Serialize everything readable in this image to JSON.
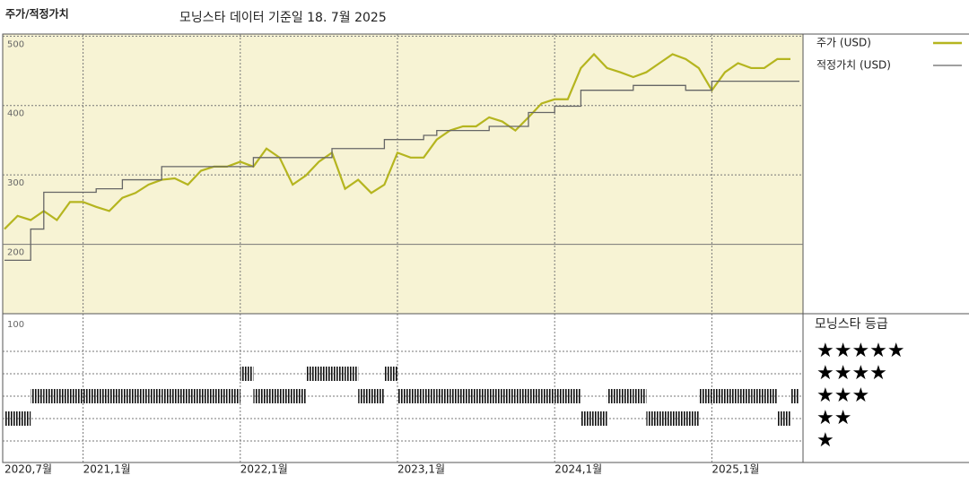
{
  "chart_data": [
    {
      "type": "line",
      "title": "주가/적정가치",
      "subtitle": "모닝스타 데이터 기준일 18. 7월 2025",
      "x": [
        "2020-07",
        "2020-08",
        "2020-09",
        "2020-10",
        "2020-11",
        "2020-12",
        "2021-01",
        "2021-02",
        "2021-03",
        "2021-04",
        "2021-05",
        "2021-06",
        "2021-07",
        "2021-08",
        "2021-09",
        "2021-10",
        "2021-11",
        "2021-12",
        "2022-01",
        "2022-02",
        "2022-03",
        "2022-04",
        "2022-05",
        "2022-06",
        "2022-07",
        "2022-08",
        "2022-09",
        "2022-10",
        "2022-11",
        "2022-12",
        "2023-01",
        "2023-02",
        "2023-03",
        "2023-04",
        "2023-05",
        "2023-06",
        "2023-07",
        "2023-08",
        "2023-09",
        "2023-10",
        "2023-11",
        "2023-12",
        "2024-01",
        "2024-02",
        "2024-03",
        "2024-04",
        "2024-05",
        "2024-06",
        "2024-07",
        "2024-08",
        "2024-09",
        "2024-10",
        "2024-11",
        "2024-12",
        "2025-01",
        "2025-02",
        "2025-03",
        "2025-04",
        "2025-05",
        "2025-06",
        "2025-07"
      ],
      "series": [
        {
          "name": "주가 (USD)",
          "color": "#b5b51f",
          "values": [
            222,
            241,
            235,
            248,
            235,
            261,
            261,
            254,
            248,
            267,
            274,
            286,
            293,
            295,
            286,
            306,
            312,
            312,
            319,
            312,
            338,
            325,
            286,
            299,
            319,
            332,
            280,
            293,
            274,
            286,
            332,
            325,
            325,
            351,
            364,
            370,
            370,
            383,
            377,
            364,
            383,
            403,
            409,
            409,
            454,
            474,
            454,
            448,
            441,
            448,
            461,
            474,
            467,
            454,
            422,
            448,
            461,
            454,
            454,
            467,
            467
          ]
        },
        {
          "name": "적정가치 (USD)",
          "color": "#666666",
          "step": true,
          "values": [
            177,
            177,
            222,
            275,
            275,
            275,
            275,
            280,
            280,
            293,
            293,
            293,
            312,
            312,
            312,
            312,
            312,
            312,
            312,
            325,
            325,
            325,
            325,
            325,
            325,
            338,
            338,
            338,
            338,
            351,
            351,
            351,
            357,
            364,
            364,
            364,
            364,
            370,
            370,
            370,
            390,
            390,
            399,
            399,
            422,
            422,
            422,
            422,
            429,
            429,
            429,
            429,
            422,
            422,
            435,
            435,
            435,
            435,
            435,
            435,
            435
          ]
        }
      ],
      "ylim": [
        100,
        503
      ],
      "yticks": [
        200,
        300,
        400,
        500
      ],
      "grid": true,
      "xticks": [
        {
          "value": "2020-07",
          "label": "2020,7월"
        },
        {
          "value": "2021-01",
          "label": "2021,1월"
        },
        {
          "value": "2022-01",
          "label": "2022,1월"
        },
        {
          "value": "2023-01",
          "label": "2023,1월"
        },
        {
          "value": "2024-01",
          "label": "2024,1월"
        },
        {
          "value": "2025-01",
          "label": "2025,1월"
        }
      ]
    },
    {
      "type": "rating",
      "title": "모닝스타 등급",
      "axis_label": "100",
      "values": [
        2,
        2,
        3,
        3,
        3,
        3,
        3,
        3,
        3,
        3,
        3,
        3,
        3,
        3,
        3,
        3,
        3,
        3,
        4,
        3,
        3,
        3,
        3,
        4,
        4,
        4,
        4,
        3,
        3,
        4,
        3,
        3,
        3,
        3,
        3,
        3,
        3,
        3,
        3,
        3,
        3,
        3,
        3,
        3,
        2,
        2,
        3,
        3,
        3,
        2,
        2,
        2,
        2,
        3,
        3,
        3,
        3,
        3,
        3,
        2,
        3
      ],
      "levels": [
        {
          "value": 5,
          "label": "★★★★★"
        },
        {
          "value": 4,
          "label": "★★★★"
        },
        {
          "value": 3,
          "label": "★★★"
        },
        {
          "value": 2,
          "label": "★★"
        },
        {
          "value": 1,
          "label": "★"
        }
      ]
    }
  ]
}
